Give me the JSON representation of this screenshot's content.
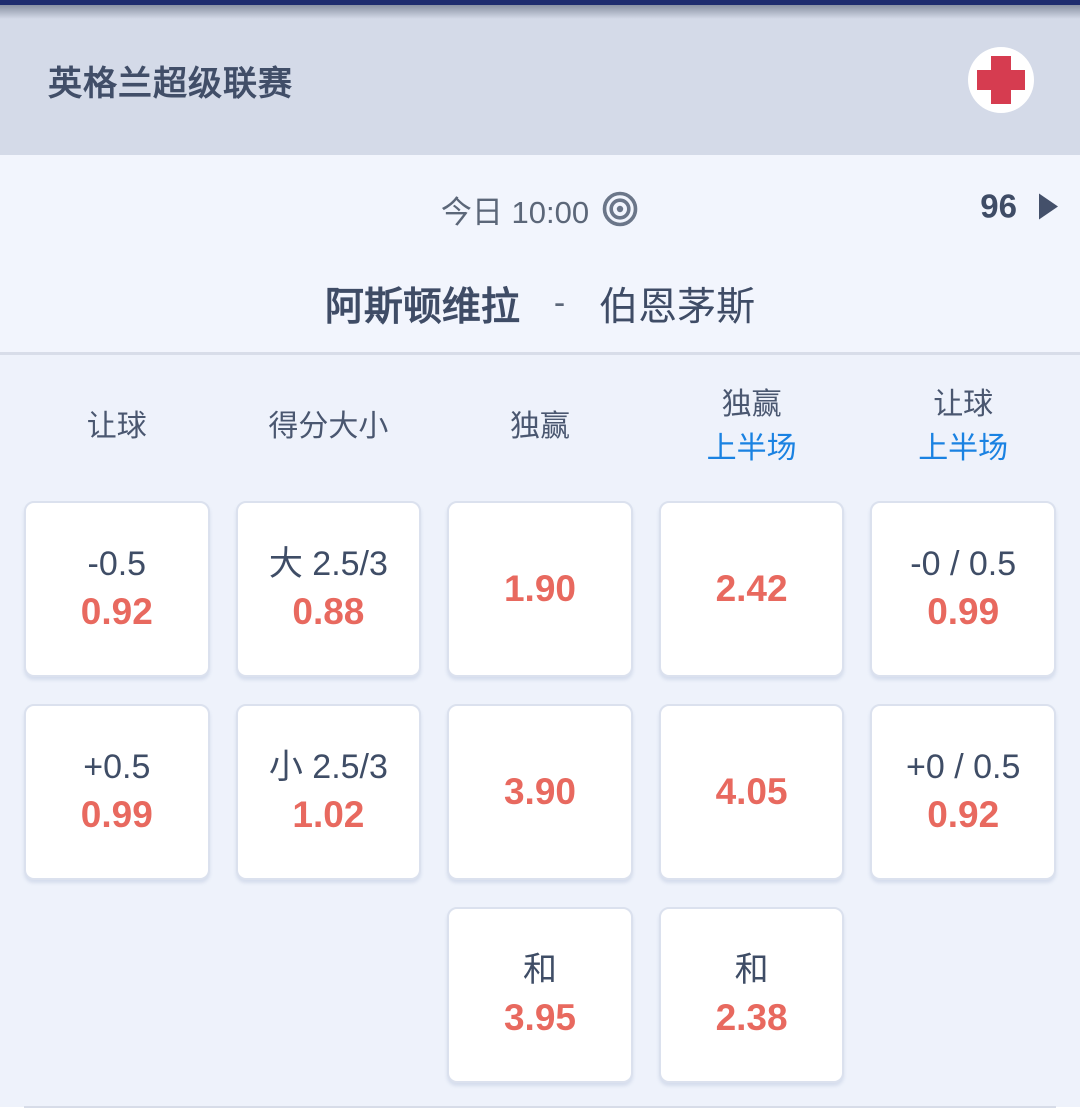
{
  "header": {
    "league_title": "英格兰超级联赛",
    "flag_icon": "england-flag-icon"
  },
  "match": {
    "time_label": "今日 10:00",
    "target_icon": "bullseye-icon",
    "markets_count": "96",
    "home_team": "阿斯顿维拉",
    "separator": "-",
    "away_team": "伯恩茅斯"
  },
  "markets": {
    "columns": [
      {
        "label": "让球",
        "sublabel": ""
      },
      {
        "label": "得分大小",
        "sublabel": ""
      },
      {
        "label": "独赢",
        "sublabel": ""
      },
      {
        "label": "独赢",
        "sublabel": "上半场"
      },
      {
        "label": "让球",
        "sublabel": "上半场"
      }
    ],
    "rows": [
      [
        {
          "line": "-0.5",
          "odds": "0.92"
        },
        {
          "line": "大 2.5/3",
          "odds": "0.88"
        },
        {
          "line": "",
          "odds": "1.90"
        },
        {
          "line": "",
          "odds": "2.42"
        },
        {
          "line": "-0 / 0.5",
          "odds": "0.99"
        }
      ],
      [
        {
          "line": "+0.5",
          "odds": "0.99"
        },
        {
          "line": "小 2.5/3",
          "odds": "1.02"
        },
        {
          "line": "",
          "odds": "3.90"
        },
        {
          "line": "",
          "odds": "4.05"
        },
        {
          "line": "+0 / 0.5",
          "odds": "0.92"
        }
      ],
      [
        null,
        null,
        {
          "line": "和",
          "odds": "3.95"
        },
        {
          "line": "和",
          "odds": "2.38"
        },
        null
      ]
    ]
  },
  "colors": {
    "top_bar": "#1e2c6e",
    "header_bg": "#d4dae8",
    "section_bg": "#eef2fb",
    "accent_blue": "#1a82e2",
    "odds_red": "#e8695f",
    "text_slate": "#3f4c66",
    "flag_cross_red": "#d63c50"
  }
}
